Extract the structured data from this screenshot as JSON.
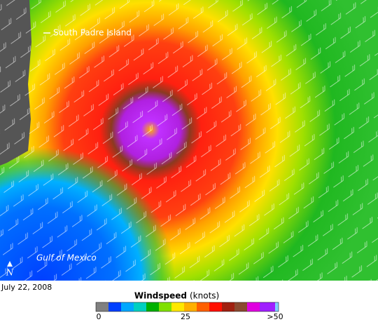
{
  "map": {
    "labels": [
      "South Padre Island",
      "Gulf of Mexico"
    ],
    "north": "N"
  },
  "caption": {
    "date": "July 22, 2008"
  },
  "legend": {
    "title": "Windspeed",
    "unit": "(knots)",
    "ticks": [
      "0",
      "25",
      ">50"
    ]
  }
}
